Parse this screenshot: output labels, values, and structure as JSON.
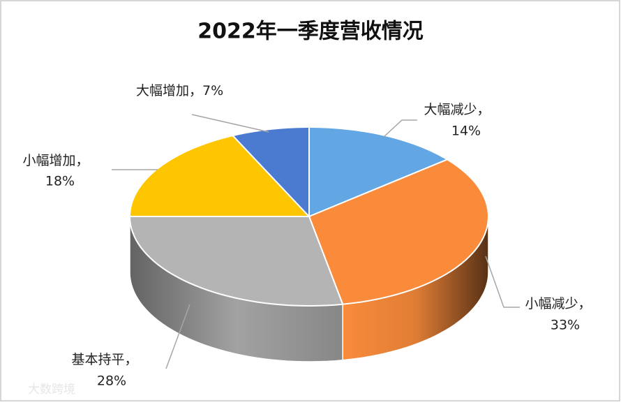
{
  "chart_data": {
    "type": "pie3d",
    "title": "2022年一季度营收情况",
    "categories": [
      "大幅减少",
      "小幅减少",
      "基本持平",
      "小幅增加",
      "大幅增加"
    ],
    "label_separator": "，",
    "values": [
      14,
      33,
      28,
      18,
      7
    ],
    "value_labels": [
      "14%",
      "33%",
      "28%",
      "18%",
      "7%"
    ],
    "colors": [
      "#62a6e3",
      "#f98b3b",
      "#b4b4b4",
      "#fec600",
      "#4a7bd1"
    ],
    "watermark": "大数跨境"
  }
}
